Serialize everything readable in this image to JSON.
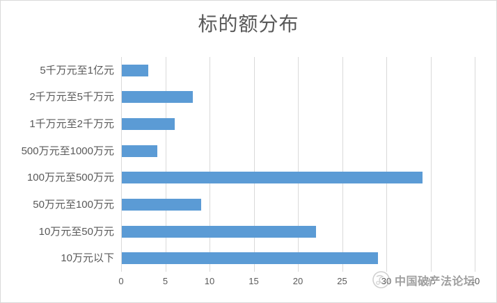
{
  "chart_title": "标的额分布",
  "chart_data": {
    "type": "bar",
    "orientation": "horizontal",
    "title": "标的额分布",
    "categories": [
      "5千万元至1亿元",
      "2千万元至5千万元",
      "1千万元至2千万元",
      "500万元至1000万元",
      "100万元至500万元",
      "50万元至100万元",
      "10万元至50万元",
      "10万元以下"
    ],
    "values": [
      3,
      8,
      6,
      4,
      34,
      9,
      22,
      29
    ],
    "x_ticks": [
      0,
      5,
      10,
      15,
      20,
      25,
      30,
      35,
      40
    ],
    "xlim": [
      0,
      40
    ],
    "xlabel": "",
    "ylabel": "",
    "grid": true,
    "legend": false,
    "bar_color": "#5b9bd5",
    "gridline_color": "#d9d9d9"
  },
  "watermark": {
    "logo_icon": "forum-logo-icon",
    "text": "中国破产法论坛"
  },
  "colors": {
    "title_text": "#595959",
    "label_text": "#595959",
    "bar": "#5b9bd5",
    "grid": "#d9d9d9",
    "border": "#d9d9d9",
    "watermark_text": "#8f8f8f"
  }
}
